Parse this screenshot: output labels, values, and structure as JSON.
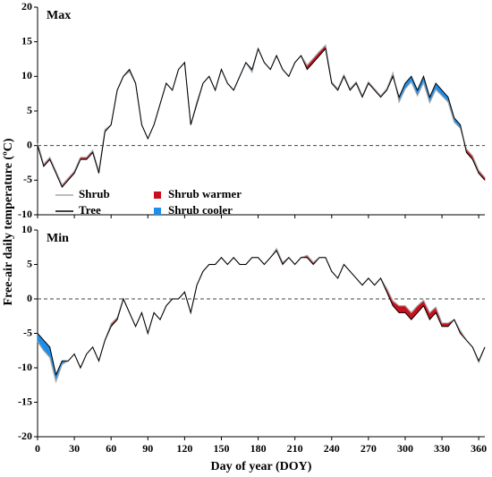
{
  "chart_data": [
    {
      "type": "line",
      "panel_label": "Max",
      "ylabel": "Free-air daily temperature (ºC)",
      "x": [
        0,
        5,
        10,
        15,
        20,
        25,
        30,
        35,
        40,
        45,
        50,
        55,
        60,
        65,
        70,
        75,
        80,
        85,
        90,
        95,
        100,
        105,
        110,
        115,
        120,
        125,
        130,
        135,
        140,
        145,
        150,
        155,
        160,
        165,
        170,
        175,
        180,
        185,
        190,
        195,
        200,
        205,
        210,
        215,
        220,
        225,
        230,
        235,
        240,
        245,
        250,
        255,
        260,
        265,
        270,
        275,
        280,
        285,
        290,
        295,
        300,
        305,
        310,
        315,
        320,
        325,
        330,
        335,
        340,
        345,
        350,
        355,
        360,
        365
      ],
      "series": [
        {
          "name": "Shrub",
          "color": "#a6a6a6",
          "values": [
            0.3,
            -2.7,
            -1.7,
            -3.7,
            -5.7,
            -4.7,
            -3.7,
            -1.7,
            -1.7,
            -0.7,
            -3.7,
            2.3,
            3,
            8,
            10,
            10.7,
            9,
            3,
            1,
            3,
            6,
            9,
            8,
            11,
            12,
            3,
            6.3,
            9,
            10,
            8,
            11,
            9,
            8,
            10,
            12,
            10.6,
            14,
            12,
            11,
            13,
            11,
            10,
            12,
            13,
            11.6,
            12.6,
            13.6,
            14.5,
            9.2,
            8.2,
            10.2,
            8.2,
            9.2,
            7.2,
            9.2,
            8.2,
            7.2,
            8.2,
            10.5,
            6.3,
            8.2,
            9.2,
            7.2,
            9.1,
            6.2,
            8.1,
            7.2,
            6.3,
            3.4,
            2.5,
            -0.5,
            -1.5,
            -3.6,
            -4.6
          ]
        },
        {
          "name": "Tree",
          "color": "#000000",
          "values": [
            0,
            -3,
            -2,
            -4,
            -6,
            -5,
            -4,
            -2,
            -2,
            -1,
            -4,
            2,
            3,
            8,
            10,
            11,
            9,
            3,
            1,
            3,
            6,
            9,
            8,
            11,
            12,
            3,
            6,
            9,
            10,
            8,
            11,
            9,
            8,
            10,
            12,
            11,
            14,
            12,
            11,
            13,
            11,
            10,
            12,
            13,
            11,
            12,
            13,
            14,
            9,
            8,
            10,
            8,
            9,
            7,
            9,
            8,
            7,
            8,
            10,
            7,
            9,
            10,
            8,
            10,
            7,
            9,
            8,
            7,
            4,
            3,
            -1,
            -2,
            -4,
            -5
          ]
        }
      ],
      "fill_legend": [
        {
          "name": "Shrub warmer",
          "color": "#c8101e"
        },
        {
          "name": "Shrub cooler",
          "color": "#1e8ee8"
        }
      ],
      "legend": true,
      "reference_line": 0,
      "xlim": [
        0,
        365
      ],
      "xticks": [
        0,
        30,
        60,
        90,
        120,
        150,
        180,
        210,
        240,
        270,
        300,
        330,
        360
      ],
      "ylim": [
        -10,
        20
      ],
      "yticks": [
        20,
        15,
        10,
        5,
        0,
        -5,
        -10
      ]
    },
    {
      "type": "line",
      "panel_label": "Min",
      "xlabel": "Day of year (DOY)",
      "x": [
        0,
        5,
        10,
        15,
        20,
        25,
        30,
        35,
        40,
        45,
        50,
        55,
        60,
        65,
        70,
        75,
        80,
        85,
        90,
        95,
        100,
        105,
        110,
        115,
        120,
        125,
        130,
        135,
        140,
        145,
        150,
        155,
        160,
        165,
        170,
        175,
        180,
        185,
        190,
        195,
        200,
        205,
        210,
        215,
        220,
        225,
        230,
        235,
        240,
        245,
        250,
        255,
        260,
        265,
        270,
        275,
        280,
        285,
        290,
        295,
        300,
        305,
        310,
        315,
        320,
        325,
        330,
        335,
        340,
        345,
        350,
        355,
        360,
        365
      ],
      "series": [
        {
          "name": "Shrub",
          "color": "#a6a6a6",
          "values": [
            -6.2,
            -7.5,
            -8.5,
            -12,
            -9.5,
            -9,
            -8,
            -10,
            -8,
            -7,
            -9,
            -6,
            -3.6,
            -2.7,
            0,
            -2,
            -4,
            -2,
            -5,
            -2,
            -3,
            -1,
            0,
            0,
            1,
            -2,
            2,
            4,
            5,
            5,
            6,
            5,
            6,
            5,
            5,
            6,
            6,
            5,
            6,
            7.3,
            5.3,
            6,
            5,
            6,
            6.3,
            5.3,
            6,
            6,
            4,
            3,
            5,
            4,
            3,
            2,
            3,
            2,
            3,
            1.5,
            -0.3,
            -1,
            -1,
            -2,
            -1,
            -0.2,
            -2,
            -1.2,
            -3.5,
            -3.5,
            -3,
            -4.6,
            -6,
            -7,
            -9.2,
            -7
          ]
        },
        {
          "name": "Tree",
          "color": "#000000",
          "values": [
            -5,
            -6,
            -7,
            -11,
            -9,
            -9,
            -8,
            -10,
            -8,
            -7,
            -9,
            -6,
            -4,
            -3,
            0,
            -2,
            -4,
            -2,
            -5,
            -2,
            -3,
            -1,
            0,
            0,
            1,
            -2,
            2,
            4,
            5,
            5,
            6,
            5,
            6,
            5,
            5,
            6,
            6,
            5,
            6,
            7,
            5,
            6,
            5,
            6,
            6,
            5,
            6,
            6,
            4,
            3,
            5,
            4,
            3,
            2,
            3,
            2,
            3,
            1,
            -1,
            -2,
            -2,
            -3,
            -2,
            -1,
            -3,
            -2,
            -4,
            -4,
            -3,
            -5,
            -6,
            -7,
            -9,
            -7
          ]
        }
      ],
      "fill_legend": [
        {
          "name": "Shrub warmer",
          "color": "#c8101e"
        },
        {
          "name": "Shrub cooler",
          "color": "#1e8ee8"
        }
      ],
      "reference_line": 0,
      "xlim": [
        0,
        365
      ],
      "xticks": [
        0,
        30,
        60,
        90,
        120,
        150,
        180,
        210,
        240,
        270,
        300,
        330,
        360
      ],
      "ylim": [
        -20,
        10
      ],
      "yticks": [
        10,
        5,
        0,
        -5,
        -10,
        -15,
        -20
      ]
    }
  ]
}
